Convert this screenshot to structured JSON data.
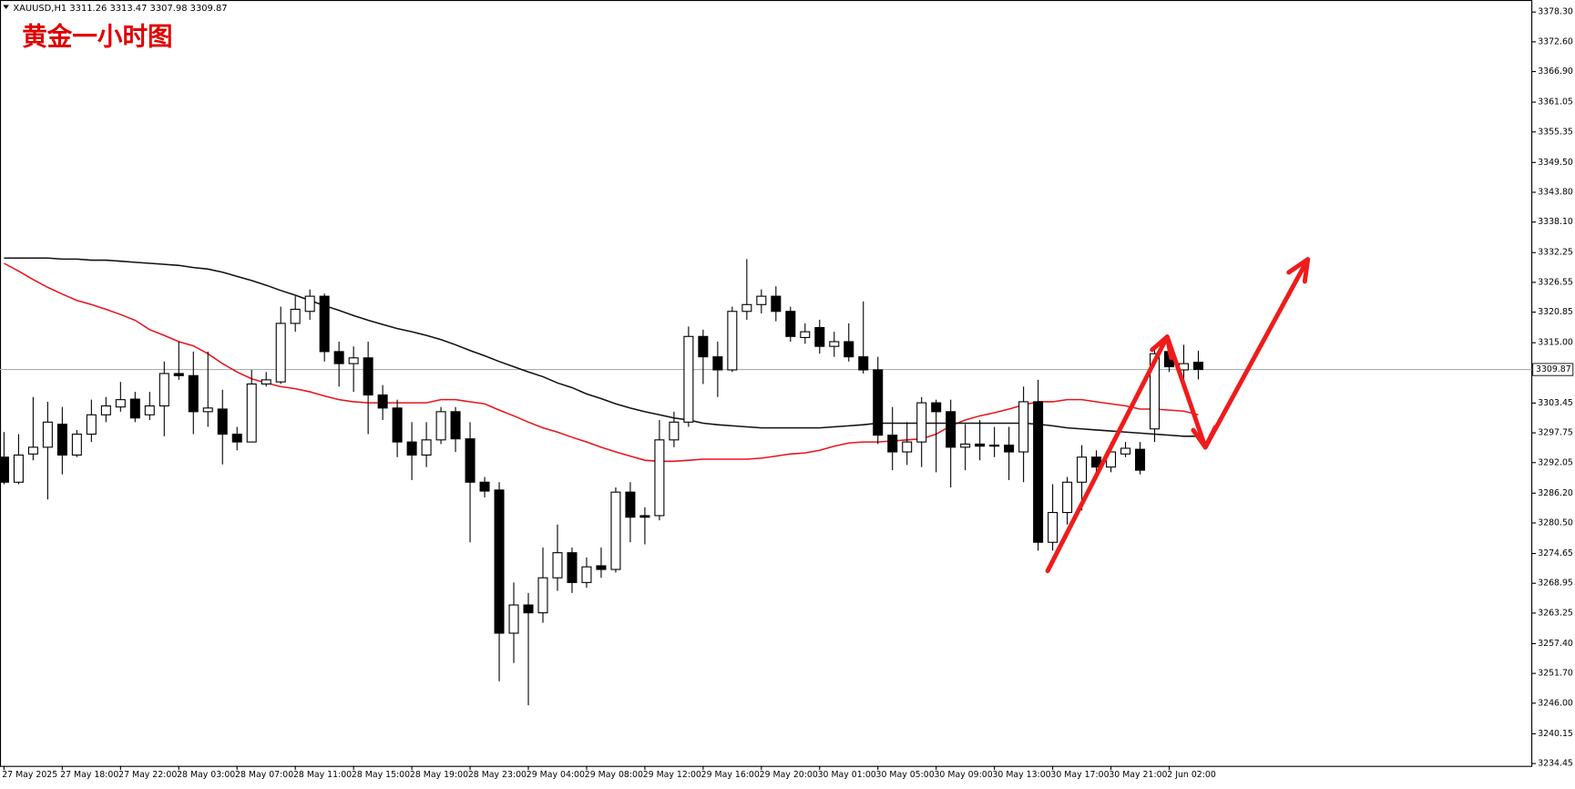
{
  "chart_data": {
    "type": "candlestick",
    "header": "XAUUSD,H1  3311.26 3313.47 3307.98 3309.87",
    "title": "黄金一小时图",
    "categories": [
      "27 May 2025",
      null,
      null,
      null,
      "27 May 18:00",
      null,
      null,
      null,
      "27 May 22:00",
      null,
      null,
      null,
      "28 May 03:00",
      null,
      null,
      null,
      "28 May 07:00",
      null,
      null,
      null,
      "28 May 11:00",
      null,
      null,
      null,
      "28 May 15:00",
      null,
      null,
      null,
      "28 May 19:00",
      null,
      null,
      null,
      "28 May 23:00",
      null,
      null,
      null,
      "29 May 04:00",
      null,
      null,
      null,
      "29 May 08:00",
      null,
      null,
      null,
      "29 May 12:00",
      null,
      null,
      null,
      "29 May 16:00",
      null,
      null,
      null,
      "29 May 20:00",
      null,
      null,
      null,
      "30 May 01:00",
      null,
      null,
      null,
      "30 May 05:00",
      null,
      null,
      null,
      "30 May 09:00",
      null,
      null,
      null,
      "30 May 13:00",
      null,
      null,
      null,
      "30 May 17:00",
      null,
      null,
      null,
      "30 May 21:00",
      null,
      null,
      null,
      "2 Jun 02:00",
      null,
      null
    ],
    "open": [
      3293.1,
      3288.3,
      3293.7,
      3295.0,
      3299.4,
      3293.5,
      3297.5,
      3301.2,
      3302.7,
      3304.2,
      3301.2,
      3302.9,
      3309.1,
      3308.7,
      3301.8,
      3302.3,
      3297.5,
      3296.0,
      3307.1,
      3307.5,
      3318.7,
      3321.0,
      3323.9,
      3313.3,
      3311.0,
      3312.1,
      3305.0,
      3302.5,
      3296.0,
      3293.5,
      3296.4,
      3301.8,
      3296.6,
      3288.3,
      3286.8,
      3259.4,
      3264.8,
      3263.3,
      3270.0,
      3274.8,
      3269.1,
      3272.3,
      3271.6,
      3286.4,
      3281.9,
      3281.9,
      3296.4,
      3299.8,
      3316.2,
      3312.3,
      3309.8,
      3321.0,
      3322.3,
      3323.9,
      3321.0,
      3316.0,
      3317.9,
      3314.3,
      3315.2,
      3312.3,
      3309.8,
      3297.3,
      3294.1,
      3296.0,
      3303.5,
      3301.8,
      3295.0,
      3295.6,
      3295.4,
      3295.4,
      3294.1,
      3303.7,
      3276.8,
      3282.5,
      3288.3,
      3293.1,
      3291.2,
      3293.7,
      3294.6,
      3298.5,
      3313.3,
      3309.8,
      3311.26
    ],
    "high": [
      3297.9,
      3297.5,
      3304.6,
      3303.7,
      3302.7,
      3298.3,
      3304.1,
      3304.6,
      3307.5,
      3305.6,
      3305.6,
      3311.4,
      3315.2,
      3313.3,
      3313.3,
      3306.0,
      3298.9,
      3309.8,
      3309.4,
      3321.9,
      3323.9,
      3325.2,
      3324.4,
      3315.2,
      3314.3,
      3315.2,
      3306.9,
      3304.1,
      3299.8,
      3299.8,
      3302.7,
      3302.7,
      3299.8,
      3289.3,
      3288.3,
      3269.1,
      3267.1,
      3275.8,
      3280.2,
      3275.8,
      3273.9,
      3275.8,
      3287.3,
      3288.3,
      3283.5,
      3300.2,
      3301.8,
      3318.1,
      3317.5,
      3315.2,
      3321.9,
      3331.0,
      3325.2,
      3325.8,
      3321.9,
      3318.7,
      3319.4,
      3317.1,
      3318.7,
      3322.9,
      3312.3,
      3302.7,
      3299.8,
      3304.6,
      3304.1,
      3304.1,
      3299.4,
      3300.2,
      3298.9,
      3298.9,
      3306.6,
      3307.9,
      3287.9,
      3289.3,
      3295.4,
      3294.4,
      3296.0,
      3296.0,
      3296.0,
      3313.9,
      3314.8,
      3314.6,
      3313.47
    ],
    "low": [
      3287.9,
      3287.9,
      3292.5,
      3285.0,
      3289.8,
      3293.1,
      3296.0,
      3299.8,
      3301.8,
      3299.8,
      3300.2,
      3297.1,
      3307.9,
      3297.5,
      3298.9,
      3291.7,
      3294.4,
      3296.0,
      3306.6,
      3307.1,
      3317.1,
      3319.4,
      3311.4,
      3306.6,
      3305.6,
      3297.5,
      3300.2,
      3293.1,
      3288.7,
      3291.2,
      3295.6,
      3294.1,
      3276.8,
      3285.4,
      3250.2,
      3253.7,
      3245.6,
      3261.4,
      3267.5,
      3267.1,
      3268.1,
      3270.0,
      3271.0,
      3276.8,
      3276.4,
      3281.0,
      3295.0,
      3298.9,
      3307.1,
      3304.6,
      3309.4,
      3319.4,
      3320.6,
      3319.1,
      3315.2,
      3314.8,
      3312.9,
      3312.3,
      3311.4,
      3309.1,
      3295.6,
      3290.6,
      3291.6,
      3291.2,
      3290.2,
      3287.3,
      3290.6,
      3292.5,
      3293.1,
      3288.7,
      3288.3,
      3275.2,
      3275.2,
      3280.2,
      3282.9,
      3290.2,
      3290.2,
      3293.1,
      3289.8,
      3296.0,
      3309.4,
      3306.0,
      3307.98
    ],
    "close": [
      3288.3,
      3293.5,
      3295.0,
      3299.8,
      3293.5,
      3297.5,
      3301.2,
      3302.9,
      3304.1,
      3300.6,
      3302.9,
      3309.1,
      3308.7,
      3301.8,
      3302.5,
      3297.5,
      3296.0,
      3307.1,
      3307.9,
      3318.7,
      3321.4,
      3323.9,
      3313.3,
      3311.0,
      3312.1,
      3305.0,
      3302.5,
      3296.0,
      3293.5,
      3296.4,
      3301.8,
      3296.6,
      3288.3,
      3286.6,
      3259.4,
      3264.8,
      3263.3,
      3270.0,
      3274.8,
      3269.1,
      3272.1,
      3271.6,
      3286.4,
      3281.6,
      3281.6,
      3296.4,
      3299.8,
      3316.2,
      3312.3,
      3309.8,
      3321.0,
      3322.3,
      3323.9,
      3321.0,
      3316.2,
      3317.1,
      3314.3,
      3315.2,
      3312.3,
      3309.8,
      3297.3,
      3294.1,
      3296.0,
      3303.5,
      3301.8,
      3295.0,
      3295.6,
      3295.2,
      3295.2,
      3294.1,
      3303.7,
      3276.8,
      3282.5,
      3288.3,
      3293.1,
      3291.2,
      3294.1,
      3294.8,
      3290.6,
      3312.9,
      3310.4,
      3311.0,
      3309.87
    ],
    "up_color": "#ffffff",
    "down_color": "#000000",
    "candle_stroke": "#000000",
    "moving_averages": [
      {
        "color": "#e8141c",
        "values": [
          3330.2,
          3328.7,
          3327.1,
          3325.6,
          3324.3,
          3323.1,
          3322.3,
          3321.4,
          3320.4,
          3319.3,
          3317.5,
          3316.4,
          3315.2,
          3314.4,
          3312.9,
          3311.0,
          3309.4,
          3308.1,
          3307.3,
          3306.6,
          3306.2,
          3305.6,
          3304.8,
          3304.1,
          3303.7,
          3303.5,
          3303.5,
          3303.5,
          3303.5,
          3303.5,
          3304.1,
          3304.1,
          3303.7,
          3303.3,
          3302.1,
          3301.0,
          3299.8,
          3298.7,
          3297.9,
          3296.9,
          3296.0,
          3295.0,
          3294.1,
          3293.3,
          3292.5,
          3292.3,
          3292.3,
          3292.5,
          3292.7,
          3292.7,
          3292.7,
          3292.7,
          3292.9,
          3293.3,
          3293.7,
          3293.9,
          3294.4,
          3295.2,
          3295.8,
          3296.0,
          3296.0,
          3296.2,
          3296.4,
          3296.6,
          3297.5,
          3299.1,
          3300.2,
          3301.0,
          3301.6,
          3302.3,
          3303.1,
          3303.7,
          3303.7,
          3304.1,
          3304.1,
          3303.7,
          3303.3,
          3302.9,
          3302.3,
          3302.3,
          3302.1,
          3301.9,
          3301.2
        ]
      },
      {
        "color": "#111111",
        "values": [
          3331.2,
          3331.2,
          3331.2,
          3331.2,
          3331.0,
          3331.0,
          3330.8,
          3330.8,
          3330.6,
          3330.4,
          3330.2,
          3330.0,
          3329.8,
          3329.4,
          3329.1,
          3328.5,
          3327.7,
          3326.9,
          3326.0,
          3325.0,
          3324.1,
          3323.1,
          3322.1,
          3321.2,
          3320.2,
          3319.3,
          3318.5,
          3317.7,
          3317.1,
          3316.4,
          3315.6,
          3314.6,
          3313.5,
          3312.5,
          3311.4,
          3310.4,
          3309.4,
          3308.5,
          3307.3,
          3306.4,
          3305.2,
          3304.3,
          3303.3,
          3302.5,
          3301.8,
          3301.2,
          3300.6,
          3300.2,
          3299.6,
          3299.3,
          3299.1,
          3298.9,
          3298.7,
          3298.7,
          3298.7,
          3298.7,
          3298.7,
          3298.9,
          3299.1,
          3299.3,
          3299.6,
          3299.6,
          3299.6,
          3299.6,
          3299.6,
          3299.6,
          3299.6,
          3299.6,
          3299.6,
          3299.6,
          3299.6,
          3299.4,
          3299.1,
          3298.7,
          3298.5,
          3298.3,
          3298.1,
          3297.9,
          3297.7,
          3297.5,
          3297.3,
          3297.1,
          3297.1
        ]
      }
    ],
    "current_price": 3309.87,
    "price_line_color": "#a7b0b0",
    "ylim": [
      3234.0,
      3380.6
    ],
    "yticks": [
      {
        "value": 3378.3,
        "label": "3378.30"
      },
      {
        "value": 3372.6,
        "label": "3372.60"
      },
      {
        "value": 3366.9,
        "label": "3366.90"
      },
      3361.05,
      3355.35,
      {
        "value": 3349.5,
        "label": "3349.50"
      },
      {
        "value": 3343.8,
        "label": "3343.80"
      },
      {
        "value": 3338.1,
        "label": "3338.10"
      },
      3332.25,
      3326.55,
      3320.85,
      {
        "value": 3315,
        "label": "3315.00"
      },
      3303.45,
      3297.75,
      3292.05,
      {
        "value": 3286.2,
        "label": "3286.20"
      },
      {
        "value": 3280.5,
        "label": "3280.50"
      },
      3274.65,
      3268.95,
      3263.25,
      {
        "value": 3257.4,
        "label": "3257.40"
      },
      {
        "value": 3251.7,
        "label": "3251.70"
      },
      {
        "value": 3246,
        "label": "3246.00"
      },
      3240.15,
      3234.45
    ]
  }
}
